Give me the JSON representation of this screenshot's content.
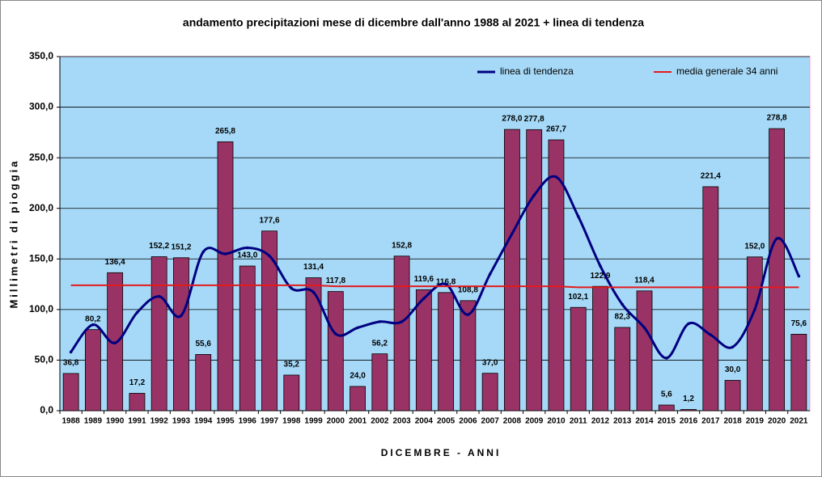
{
  "chart_data": {
    "type": "bar",
    "title": "andamento precipitazioni mese di dicembre dall'anno 1988 al 2021 + linea di tendenza",
    "x_label": "DICEMBRE - ANNI",
    "y_label": "Millimetri di pioggia",
    "categories": [
      "1988",
      "1989",
      "1990",
      "1991",
      "1992",
      "1993",
      "1994",
      "1995",
      "1996",
      "1997",
      "1998",
      "1999",
      "2000",
      "2001",
      "2002",
      "2003",
      "2004",
      "2005",
      "2006",
      "2007",
      "2008",
      "2009",
      "2010",
      "2011",
      "2012",
      "2013",
      "2014",
      "2015",
      "2016",
      "2017",
      "2018",
      "2019",
      "2020",
      "2021"
    ],
    "values": [
      36.8,
      80.2,
      136.4,
      17.2,
      152.2,
      151.2,
      55.6,
      265.8,
      143.0,
      177.6,
      35.2,
      131.4,
      117.8,
      24.0,
      56.2,
      152.8,
      119.6,
      116.8,
      108.8,
      37.0,
      278.0,
      277.8,
      267.7,
      102.1,
      122.9,
      82.3,
      118.4,
      5.6,
      1.2,
      221.4,
      30.0,
      152.0,
      278.8,
      75.6
    ],
    "value_labels": [
      "36,8",
      "80,2",
      "136,4",
      "17,2",
      "152,2",
      "151,2",
      "55,6",
      "265,8",
      "143,0",
      "177,6",
      "35,2",
      "131,4",
      "117,8",
      "24,0",
      "56,2",
      "152,8",
      "119,6",
      "116,8",
      "108,8",
      "37,0",
      "278,0",
      "277,8",
      "267,7",
      "102,1",
      "122,9",
      "82,3",
      "118,4",
      "5,6",
      "1,2",
      "221,4",
      "30,0",
      "152,0",
      "278,8",
      "75,6"
    ],
    "color": "#993366",
    "series": [
      {
        "name": "linea di tendenza",
        "color": "#000080",
        "values": [
          58,
          85,
          67,
          97,
          113,
          94,
          157,
          155,
          161,
          153,
          121,
          117,
          76,
          82,
          88,
          88,
          111,
          125,
          95,
          135,
          175,
          213,
          231,
          192,
          143,
          105,
          82,
          52,
          86,
          75,
          63,
          100,
          170,
          133
        ]
      },
      {
        "name": "media generale 34 anni",
        "color": "#e31a1c",
        "values": [
          124,
          124,
          124,
          124,
          124,
          124,
          124,
          124,
          124,
          124,
          124,
          124,
          123,
          123,
          123,
          123,
          123,
          123,
          123,
          123,
          123,
          123,
          123,
          122,
          122,
          122,
          122,
          122,
          122,
          122,
          122,
          122,
          122,
          122
        ]
      }
    ],
    "ylim": [
      0,
      350
    ],
    "yticks": [
      {
        "value": 0,
        "label": "0,0"
      },
      {
        "value": 50,
        "label": "50,0"
      },
      {
        "value": 100,
        "label": "100,0"
      },
      {
        "value": 150,
        "label": "150,0"
      },
      {
        "value": 200,
        "label": "200,0"
      },
      {
        "value": 250,
        "label": "250,0"
      },
      {
        "value": 300,
        "label": "300,0"
      },
      {
        "value": 350,
        "label": "350,0"
      }
    ],
    "grid": true,
    "legend": "top-right"
  }
}
